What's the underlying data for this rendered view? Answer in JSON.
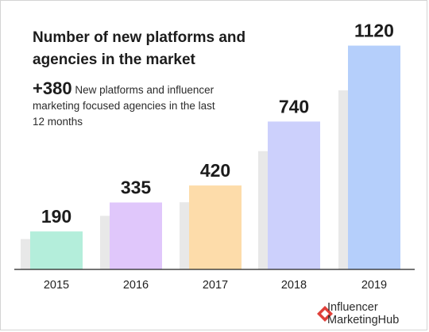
{
  "chart_data": {
    "type": "bar",
    "title": "Number of new platforms and agencies in the market",
    "annotation": {
      "value": "+380",
      "text": "New platforms and influencer marketing focused agencies in the last 12 months"
    },
    "categories": [
      "2015",
      "2016",
      "2017",
      "2018",
      "2019"
    ],
    "values": [
      190,
      335,
      420,
      740,
      1120
    ],
    "value_labels": [
      "190",
      "335",
      "420",
      "740",
      "1120"
    ],
    "bar_colors": [
      "#b4eedb",
      "#e0c7fb",
      "#fddcaa",
      "#ccd0fc",
      "#b5cffb"
    ],
    "shadow_color": "#e8e8e8",
    "ylim": [
      0,
      1150
    ],
    "grid": false,
    "legend": "none"
  },
  "brand": {
    "name": "Influencer\nMarketingHub",
    "accent_color": "#e0403a",
    "icon": "influencer-marketing-hub-logo-icon"
  }
}
